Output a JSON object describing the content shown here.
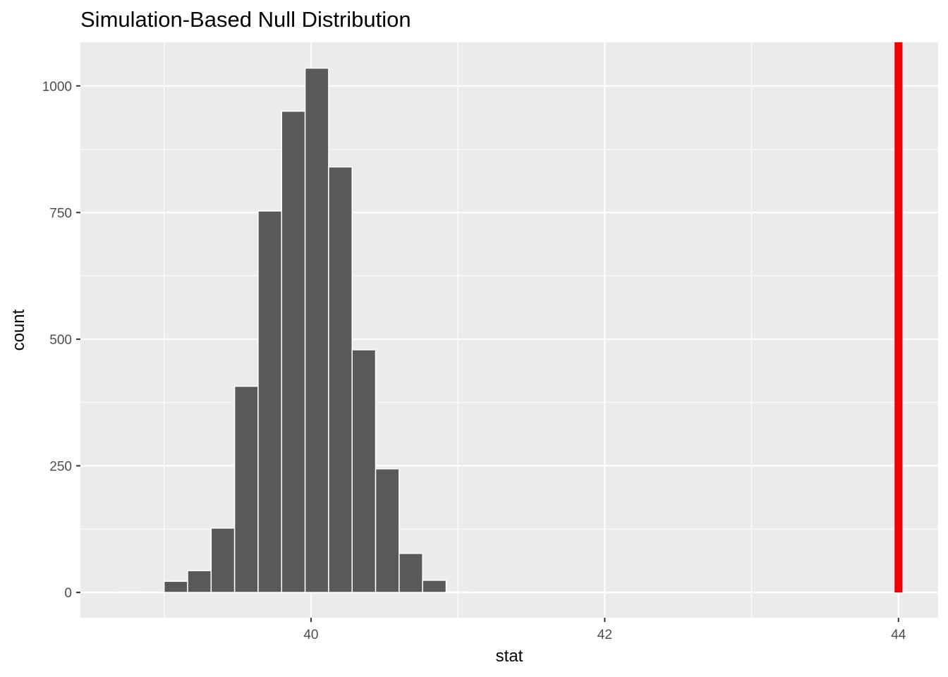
{
  "chart_data": {
    "type": "bar",
    "title": "Simulation-Based Null Distribution",
    "xlabel": "stat",
    "ylabel": "count",
    "bin_start": 38.68,
    "bin_width": 0.16,
    "counts": [
      1,
      0,
      22,
      43,
      127,
      407,
      753,
      950,
      1035,
      840,
      479,
      244,
      77,
      24,
      1
    ],
    "xlim": [
      38.43,
      44.27
    ],
    "ylim": [
      -50,
      1086
    ],
    "x_ticks": [
      40,
      42,
      44
    ],
    "x_tick_labels": [
      "40",
      "42",
      "44"
    ],
    "y_ticks": [
      0,
      250,
      500,
      750,
      1000
    ],
    "y_tick_labels": [
      "0",
      "250",
      "500",
      "750",
      "1000"
    ],
    "observed_stat": 44.0,
    "colors": {
      "bar": "#595959",
      "bar_outline": "#ffffff",
      "panel": "#ebebeb",
      "observed_line": "#ee0000"
    },
    "grid": true,
    "legend": "none"
  }
}
